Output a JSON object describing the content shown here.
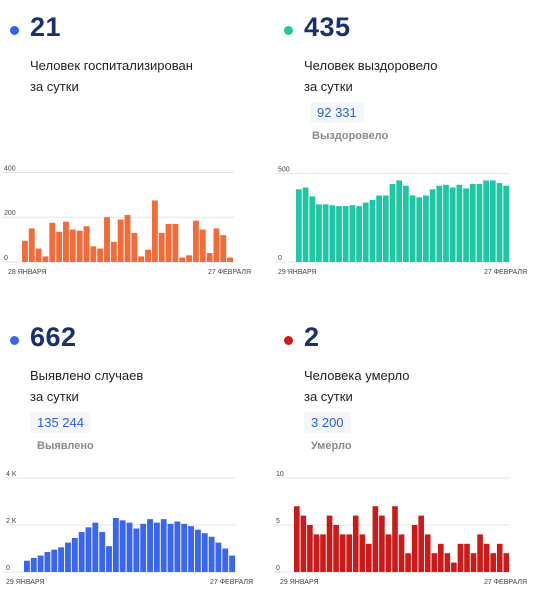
{
  "panels": [
    {
      "id": "hospitalized",
      "value": "21",
      "desc_line1": "Человек госпитализирован",
      "desc_line2": "за сутки",
      "color": "#f26b3a",
      "dot_color": "#2e64e8"
    },
    {
      "id": "recovered",
      "value": "435",
      "desc_line1": "Человек выздоровело",
      "desc_line2": "за сутки",
      "total": "92 331",
      "total_label": "Выздоровело",
      "color": "#1fc6a4",
      "dot_color": "#1fc6a4"
    },
    {
      "id": "cases",
      "value": "662",
      "desc_line1": "Выявлено случаев",
      "desc_line2": "за сутки",
      "total": "135 244",
      "total_label": "Выявлено",
      "color": "#3a66ee",
      "dot_color": "#3a66ee"
    },
    {
      "id": "deaths",
      "value": "2",
      "desc_line1": "Человека умерло",
      "desc_line2": "за сутки",
      "total": "3 200",
      "total_label": "Умерло",
      "color": "#cc1a1a",
      "dot_color": "#cc1a1a"
    }
  ],
  "chart_data": [
    {
      "type": "bar",
      "ylim": [
        0,
        420
      ],
      "yticks": [
        0,
        200,
        400
      ],
      "yticklabels": [
        "0",
        "200",
        "400"
      ],
      "xticklabels": [
        "28 ЯНВАРЯ",
        "27 ФЕВРАЛЯ"
      ],
      "values": [
        95,
        150,
        60,
        25,
        175,
        135,
        180,
        145,
        140,
        160,
        70,
        60,
        200,
        90,
        190,
        210,
        130,
        25,
        55,
        275,
        130,
        170,
        170,
        20,
        30,
        185,
        145,
        40,
        150,
        120,
        20
      ]
    },
    {
      "type": "bar",
      "ylim": [
        0,
        530
      ],
      "yticks": [
        0,
        500
      ],
      "yticklabels": [
        "0",
        "500"
      ],
      "xticklabels": [
        "29 ЯНВАРЯ",
        "27 ФЕВРАЛЯ"
      ],
      "values": [
        410,
        420,
        370,
        325,
        325,
        320,
        315,
        315,
        320,
        315,
        335,
        350,
        375,
        375,
        440,
        460,
        430,
        375,
        365,
        375,
        410,
        430,
        435,
        420,
        435,
        415,
        440,
        440,
        460,
        460,
        445,
        430
      ]
    },
    {
      "type": "bar",
      "ylim": [
        0,
        4000
      ],
      "yticks": [
        0,
        2000,
        4000
      ],
      "yticklabels": [
        "0",
        "2 K",
        "4 K"
      ],
      "xticklabels": [
        "29 ЯНВАРЯ",
        "27 ФЕВРАЛЯ"
      ],
      "values": [
        480,
        600,
        700,
        850,
        950,
        1050,
        1250,
        1450,
        1700,
        1900,
        2100,
        1700,
        1100,
        2300,
        2200,
        2100,
        1850,
        2050,
        2250,
        2100,
        2250,
        2050,
        2150,
        2050,
        1950,
        1800,
        1650,
        1500,
        1250,
        1000,
        700
      ]
    },
    {
      "type": "bar",
      "ylim": [
        0,
        10
      ],
      "yticks": [
        0,
        5,
        10
      ],
      "yticklabels": [
        "0",
        "5",
        "10"
      ],
      "xticklabels": [
        "29 ЯНВАРЯ",
        "27 ФЕВРАЛЯ"
      ],
      "values": [
        7,
        6,
        5,
        4,
        4,
        6,
        5,
        4,
        4,
        6,
        4,
        3,
        7,
        6,
        4,
        7,
        4,
        2,
        5,
        6,
        4,
        2,
        3,
        2,
        1,
        3,
        3,
        2,
        4,
        3,
        2,
        3,
        2
      ]
    }
  ]
}
